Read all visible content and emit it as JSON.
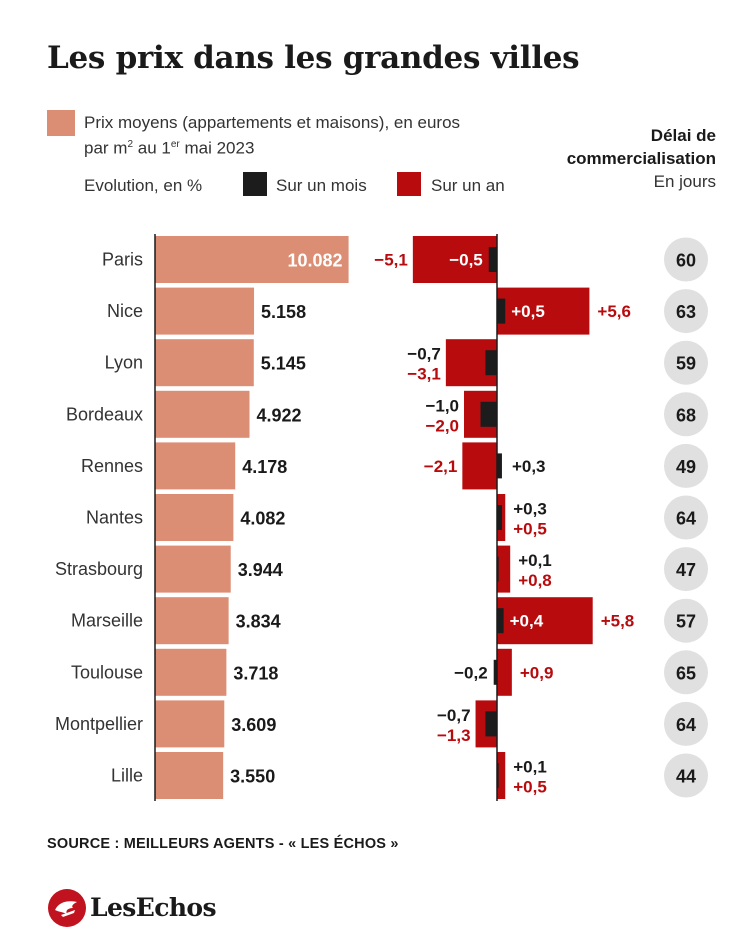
{
  "title": "Les prix dans les grandes villes",
  "legend": {
    "price_line1": "Prix moyens (appartements et maisons), en euros",
    "price_line2_a": "par m",
    "price_line2_sup1": "2",
    "price_line2_b": " au 1",
    "price_line2_sup2": "er",
    "price_line2_c": " mai 2023",
    "evolution_label": "Evolution, en %",
    "month_label": "Sur un mois",
    "year_label": "Sur un an"
  },
  "delay_header": {
    "line1": "Délai de",
    "line2": "commercialisation",
    "line3": "En jours"
  },
  "colors": {
    "price": "#db8e74",
    "month": "#1c1c1c",
    "year": "#b80b0e",
    "circle": "#e0e0e0",
    "axis": "#1a1a1a"
  },
  "chart_data": {
    "type": "bar",
    "categories": [
      "Paris",
      "Nice",
      "Lyon",
      "Bordeaux",
      "Rennes",
      "Nantes",
      "Strasbourg",
      "Marseille",
      "Toulouse",
      "Montpellier",
      "Lille"
    ],
    "series": [
      {
        "name": "Prix moyens (appartements et maisons), en euros par m2 au 1er mai 2023",
        "values": [
          10082,
          5158,
          5145,
          4922,
          4178,
          4082,
          3944,
          3834,
          3718,
          3609,
          3550
        ],
        "labels": [
          "10.082",
          "5.158",
          "5.145",
          "4.922",
          "4.178",
          "4.082",
          "3.944",
          "3.834",
          "3.718",
          "3.609",
          "3.550"
        ]
      },
      {
        "name": "Sur un mois",
        "values": [
          -0.5,
          0.5,
          -0.7,
          -1.0,
          0.3,
          0.3,
          0.1,
          0.4,
          -0.2,
          -0.7,
          0.1
        ],
        "labels": [
          "−0,5",
          "+0,5",
          "−0,7",
          "−1,0",
          "+0,3",
          "+0,3",
          "+0,1",
          "+0,4",
          "−0,2",
          "−0,7",
          "+0,1"
        ]
      },
      {
        "name": "Sur un an",
        "values": [
          -5.1,
          5.6,
          -3.1,
          -2.0,
          -2.1,
          0.5,
          0.8,
          5.8,
          0.9,
          -1.3,
          0.5
        ],
        "labels": [
          "−5,1",
          "+5,6",
          "−3,1",
          "−2,0",
          "−2,1",
          "+0,5",
          "+0,8",
          "+5,8",
          "+0,9",
          "−1,3",
          "+0,5"
        ]
      },
      {
        "name": "Délai de commercialisation, en jours",
        "values": [
          60,
          63,
          59,
          68,
          49,
          64,
          47,
          57,
          65,
          64,
          44
        ]
      }
    ]
  },
  "source": "SOURCE : MEILLEURS AGENTS - « LES ÉCHOS »",
  "logo_text": "LesEchos"
}
